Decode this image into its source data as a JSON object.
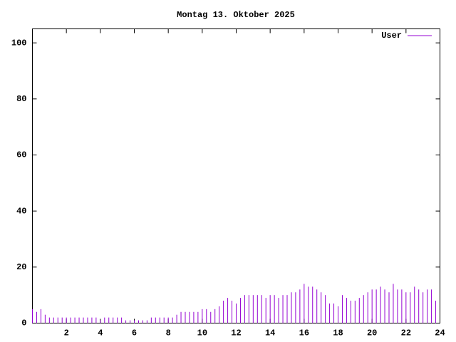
{
  "chart_data": {
    "type": "impulses",
    "title": "Montag 13. Oktober 2025",
    "x": [
      0,
      0.25,
      0.5,
      0.75,
      1,
      1.25,
      1.5,
      1.75,
      2,
      2.25,
      2.5,
      2.75,
      3,
      3.25,
      3.5,
      3.75,
      4,
      4.25,
      4.5,
      4.75,
      5,
      5.25,
      5.5,
      5.75,
      6,
      6.25,
      6.5,
      6.75,
      7,
      7.25,
      7.5,
      7.75,
      8,
      8.25,
      8.5,
      8.75,
      9,
      9.25,
      9.5,
      9.75,
      10,
      10.25,
      10.5,
      10.75,
      11,
      11.25,
      11.5,
      11.75,
      12,
      12.25,
      12.5,
      12.75,
      13,
      13.25,
      13.5,
      13.75,
      14,
      14.25,
      14.5,
      14.75,
      15,
      15.25,
      15.5,
      15.75,
      16,
      16.25,
      16.5,
      16.75,
      17,
      17.25,
      17.5,
      17.75,
      18,
      18.25,
      18.5,
      18.75,
      19,
      19.25,
      19.5,
      19.75,
      20,
      20.25,
      20.5,
      20.75,
      21,
      21.25,
      21.5,
      21.75,
      22,
      22.25,
      22.5,
      22.75,
      23,
      23.25,
      23.5,
      23.75
    ],
    "series": [
      {
        "name": "User",
        "color": "#9400d3",
        "values": [
          5,
          4,
          5,
          3,
          2,
          2,
          2,
          2,
          2,
          2,
          2,
          2,
          2,
          2,
          2,
          2,
          1,
          2,
          2,
          2,
          2,
          2,
          1,
          1,
          1,
          1,
          1,
          1,
          2,
          2,
          2,
          2,
          2,
          2,
          3,
          4,
          4,
          4,
          4,
          4,
          5,
          5,
          4,
          5,
          6,
          8,
          9,
          8,
          7,
          9,
          10,
          10,
          10,
          10,
          10,
          9,
          10,
          10,
          9,
          10,
          10,
          11,
          11,
          12,
          14,
          13,
          13,
          12,
          11,
          10,
          7,
          7,
          6,
          10,
          9,
          8,
          8,
          9,
          10,
          11,
          12,
          12,
          13,
          12,
          11,
          14,
          12,
          12,
          11,
          11,
          13,
          12,
          11,
          12,
          12,
          8
        ]
      }
    ],
    "xlim": [
      0,
      24
    ],
    "xticks": [
      2,
      4,
      6,
      8,
      10,
      12,
      14,
      16,
      18,
      20,
      22,
      24
    ],
    "ylim": [
      0,
      105
    ],
    "yticks": [
      0,
      20,
      40,
      60,
      80,
      100
    ]
  }
}
